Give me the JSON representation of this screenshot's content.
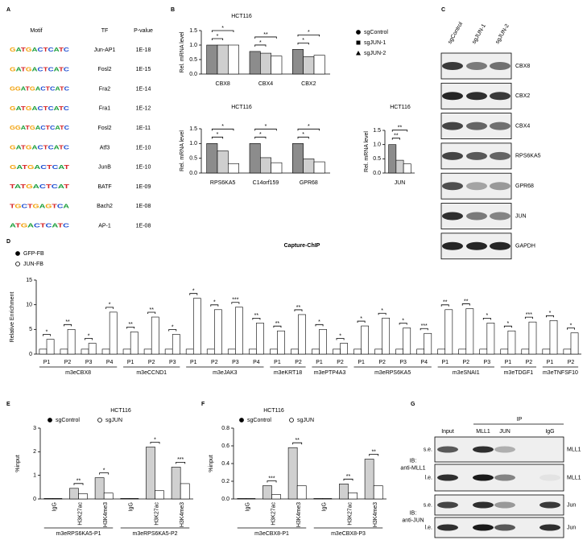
{
  "panel_labels": [
    "A",
    "B",
    "C",
    "D",
    "E",
    "F",
    "G"
  ],
  "motif_table": {
    "headers": [
      "Motif",
      "TF",
      "P-value"
    ],
    "rows": [
      {
        "motif": "GATGACTCATC",
        "tf": "Jun-AP1",
        "p": "1E-18"
      },
      {
        "motif": "GATGACTCATC",
        "tf": "Fosl2",
        "p": "1E-15"
      },
      {
        "motif": "GGATGACTCATC",
        "tf": "Fra2",
        "p": "1E-14"
      },
      {
        "motif": "GATGACTCATC",
        "tf": "Fra1",
        "p": "1E-12"
      },
      {
        "motif": "GGATGACTCATC",
        "tf": "Fosl2",
        "p": "1E-11"
      },
      {
        "motif": "GATGACTCATC",
        "tf": "Atf3",
        "p": "1E-10"
      },
      {
        "motif": "GATGACTCAT",
        "tf": "JunB",
        "p": "1E-10"
      },
      {
        "motif": "TATGACTCAT",
        "tf": "BATF",
        "p": "1E-09"
      },
      {
        "motif": "TGCTGAGTCA",
        "tf": "Bach2",
        "p": "1E-08"
      },
      {
        "motif": "ATGACTCATC",
        "tf": "AP-1",
        "p": "1E-08"
      }
    ]
  },
  "chart_data": [
    {
      "type": "bar",
      "title": "HCT116",
      "ylabel": "Rel. mRNA level",
      "categories": [
        "CBX8",
        "CBX4",
        "CBX2"
      ],
      "series": [
        {
          "name": "sgControl",
          "color": "#8c8c8c",
          "marker": "circle",
          "values": [
            1.0,
            0.78,
            0.85
          ]
        },
        {
          "name": "sgJUN-1",
          "color": "#cfcfcf",
          "marker": "square",
          "values": [
            1.0,
            0.72,
            0.6
          ]
        },
        {
          "name": "sgJUN-2",
          "color": "#ffffff",
          "marker": "triangle",
          "values": [
            1.0,
            0.62,
            0.65
          ]
        }
      ],
      "ylim": [
        0,
        1.5
      ],
      "yticks": [
        {
          "value": 0,
          "label": "0.0"
        },
        0.5,
        {
          "value": 1,
          "label": "1.0"
        },
        1.5
      ],
      "brackets": [
        [
          "*",
          "*"
        ],
        [
          "*",
          "**"
        ],
        [
          "*",
          "*"
        ]
      ],
      "legend": "right"
    },
    {
      "type": "bar",
      "title": "HCT116",
      "ylabel": "Rel. mRNA level",
      "categories": [
        "RPS6KA5",
        "C14orf159",
        "GPR68"
      ],
      "series": [
        {
          "color": "#8c8c8c",
          "values": [
            1.0,
            1.0,
            1.0
          ]
        },
        {
          "color": "#cfcfcf",
          "values": [
            0.75,
            0.52,
            0.48
          ]
        },
        {
          "color": "#ffffff",
          "values": [
            0.32,
            0.35,
            0.38
          ]
        }
      ],
      "ylim": [
        0,
        1.5
      ],
      "yticks": [
        {
          "value": 0,
          "label": "0.0"
        },
        0.5,
        {
          "value": 1,
          "label": "1.0"
        },
        1.5
      ],
      "brackets": [
        [
          "*",
          "*"
        ],
        [
          "*",
          "*"
        ],
        [
          "*",
          "*"
        ]
      ]
    },
    {
      "type": "bar",
      "title": "HCT116",
      "ylabel": "Rel. mRNA level",
      "categories": [
        "JUN"
      ],
      "series": [
        {
          "color": "#8c8c8c",
          "values": [
            1.0
          ]
        },
        {
          "color": "#cfcfcf",
          "values": [
            0.45
          ]
        },
        {
          "color": "#ffffff",
          "values": [
            0.32
          ]
        }
      ],
      "ylim": [
        0,
        1.5
      ],
      "yticks": [
        {
          "value": 0,
          "label": "0.0"
        },
        0.5,
        {
          "value": 1,
          "label": "1.0"
        },
        1.5
      ],
      "brackets": [
        [
          "**",
          "**"
        ]
      ]
    },
    {
      "type": "bar",
      "title": "Capture-ChIP",
      "ylabel": "Relative Enrichment",
      "groups": [
        {
          "name": "m3eCBX8",
          "categories": [
            "P1",
            "P2",
            "P3",
            "P4"
          ]
        },
        {
          "name": "m3eCCND1",
          "categories": [
            "P1",
            "P2",
            "P3"
          ]
        },
        {
          "name": "m3eJAK3",
          "categories": [
            "P1",
            "P2",
            "P3",
            "P4"
          ]
        },
        {
          "name": "m3eKRT18",
          "categories": [
            "P1",
            "P2"
          ]
        },
        {
          "name": "m3ePTP4A3",
          "categories": [
            "P1",
            "P2"
          ]
        },
        {
          "name": "m3eRPS6KA5",
          "categories": [
            "P1",
            "P2",
            "P3",
            "P4"
          ]
        },
        {
          "name": "m3eSNAI1",
          "categories": [
            "P1",
            "P2",
            "P3"
          ]
        },
        {
          "name": "m3eTDGF1",
          "categories": [
            "P1",
            "P2"
          ]
        },
        {
          "name": "m3eTNFSF10",
          "categories": [
            "P1",
            "P2"
          ]
        }
      ],
      "series": [
        {
          "name": "GFP-FB",
          "color": "#ffffff",
          "marker": "circle",
          "values": [
            1,
            1,
            1,
            1,
            1,
            1,
            1,
            1,
            1,
            1,
            1,
            1,
            1,
            1,
            1,
            1,
            1,
            1,
            1,
            1,
            1,
            1,
            1,
            1,
            1,
            1
          ]
        },
        {
          "name": "JUN-FB",
          "color": "#ffffff",
          "marker": "circle-open",
          "values": [
            3,
            5,
            2.2,
            8.5,
            4.5,
            7.5,
            4,
            11.3,
            9,
            9.5,
            6.3,
            4.7,
            8,
            5,
            2.2,
            5.7,
            7.3,
            5.3,
            4.2,
            9,
            9.2,
            6.3,
            4.7,
            6.5,
            6.8,
            4.3
          ]
        }
      ],
      "ylim": [
        0,
        15
      ],
      "yticks": [
        0,
        5,
        10,
        15
      ],
      "annotations": [
        "*",
        "**",
        "*",
        "*",
        "**",
        "**",
        "*",
        "*",
        "*",
        "***",
        "**",
        "**",
        "**",
        "*",
        "*",
        "*",
        "*",
        "*",
        "***",
        "**",
        "**",
        "*",
        "*",
        "***",
        "*",
        "*"
      ],
      "legend": "upper left"
    },
    {
      "type": "bar",
      "title": "HCT116",
      "ylabel": "%input",
      "groups": [
        {
          "name": "m3eRPS6KA5-P1",
          "categories": [
            "IgG",
            "H3K27ac",
            "H3K4me3"
          ]
        },
        {
          "name": "m3eRPS6KA5-P2",
          "categories": [
            "IgG",
            "H3K27ac",
            "H3K4me3"
          ]
        }
      ],
      "series": [
        {
          "name": "sgControl",
          "color": "#d0d0d0",
          "marker": "circle",
          "values": [
            0.02,
            0.45,
            0.9,
            0.02,
            2.2,
            1.35
          ]
        },
        {
          "name": "sgJUN",
          "color": "#ffffff",
          "marker": "circle-open",
          "values": [
            0.02,
            0.22,
            0.25,
            0.02,
            0.35,
            0.65
          ]
        }
      ],
      "ylim": [
        0,
        3
      ],
      "yticks": [
        0,
        1,
        2,
        3
      ],
      "annotations": [
        null,
        "**",
        "*",
        null,
        "*",
        "***"
      ],
      "legend": "top"
    },
    {
      "type": "bar",
      "title": "HCT116",
      "ylabel": "%input",
      "groups": [
        {
          "name": "m3eCBX8-P1",
          "categories": [
            "IgG",
            "H3K27ac",
            "H3K4me3"
          ]
        },
        {
          "name": "m3eCBX8-P3",
          "categories": [
            "IgG",
            "H3K27ac",
            "H3K4me3"
          ]
        }
      ],
      "series": [
        {
          "name": "sgControl",
          "color": "#d0d0d0",
          "marker": "circle",
          "values": [
            0.005,
            0.15,
            0.58,
            0.005,
            0.17,
            0.45
          ]
        },
        {
          "name": "sgJUN",
          "color": "#ffffff",
          "marker": "circle-open",
          "values": [
            0.005,
            0.05,
            0.15,
            0.005,
            0.07,
            0.15
          ]
        }
      ],
      "ylim": [
        0,
        0.8
      ],
      "yticks": [
        {
          "value": 0,
          "label": "0.0"
        },
        0.2,
        0.4,
        0.6,
        0.8
      ],
      "annotations": [
        null,
        "***",
        "**",
        null,
        "**",
        "**"
      ],
      "legend": "top"
    }
  ],
  "blot_c": {
    "lanes": [
      "sgControl",
      "sgJUN-1",
      "sgJUN-2"
    ],
    "rows": [
      "CBX8",
      "CBX2",
      "CBX4",
      "RPS6KA5",
      "GPR68",
      "JUN",
      "GAPDH"
    ]
  },
  "blot_g": {
    "header": "IP",
    "lanes": [
      "Input",
      "MLL1",
      "JUN",
      "IgG"
    ],
    "groups": [
      {
        "title": [
          "IB:",
          "anti-MLL1"
        ],
        "rows": [
          {
            "exposure": "s.e.",
            "label": "MLL1"
          },
          {
            "exposure": "l.e.",
            "label": "MLL1"
          }
        ]
      },
      {
        "title": [
          "IB:",
          "anti-JUN"
        ],
        "rows": [
          {
            "exposure": "s.e.",
            "label": "Jun"
          },
          {
            "exposure": "l.e.",
            "label": "Jun"
          }
        ]
      }
    ]
  }
}
